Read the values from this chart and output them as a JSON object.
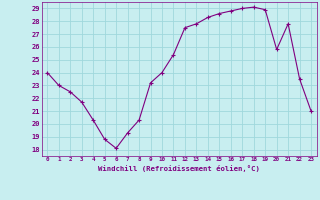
{
  "x": [
    0,
    1,
    2,
    3,
    4,
    5,
    6,
    7,
    8,
    9,
    10,
    11,
    12,
    13,
    14,
    15,
    16,
    17,
    18,
    19,
    20,
    21,
    22,
    23
  ],
  "y": [
    24,
    23,
    22.5,
    21.7,
    20.3,
    18.8,
    18.1,
    19.3,
    20.3,
    23.2,
    24.0,
    25.4,
    27.5,
    27.8,
    28.3,
    28.6,
    28.8,
    29.0,
    29.1,
    28.9,
    25.8,
    27.8,
    23.5,
    21.0
  ],
  "line_color": "#800080",
  "marker": "+",
  "marker_size": 3,
  "bg_color": "#c8eef0",
  "grid_color": "#a0d8dc",
  "xlabel": "Windchill (Refroidissement éolien,°C)",
  "ylim": [
    17.5,
    29.5
  ],
  "yticks": [
    18,
    19,
    20,
    21,
    22,
    23,
    24,
    25,
    26,
    27,
    28,
    29
  ],
  "xlim": [
    -0.5,
    23.5
  ],
  "xticks": [
    0,
    1,
    2,
    3,
    4,
    5,
    6,
    7,
    8,
    9,
    10,
    11,
    12,
    13,
    14,
    15,
    16,
    17,
    18,
    19,
    20,
    21,
    22,
    23
  ]
}
